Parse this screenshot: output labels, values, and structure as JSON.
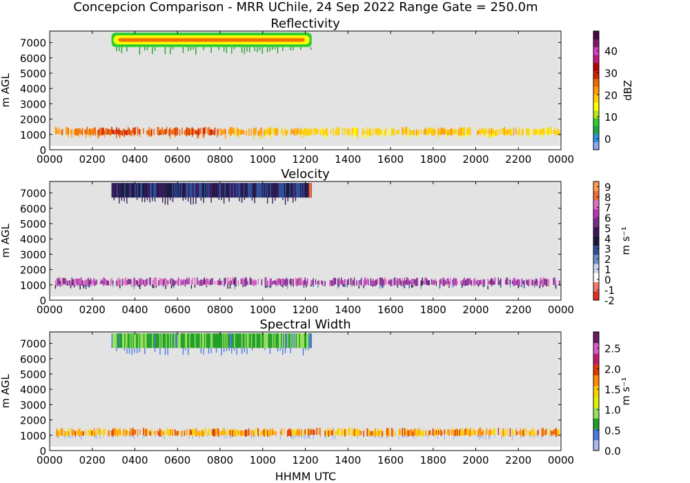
{
  "figure": {
    "suptitle": "Concepcion Comparison - MRR UChile, 24 Sep 2022 Range Gate = 250.0m",
    "xlabel": "HHMM UTC"
  },
  "chart_data": [
    {
      "type": "heatmap",
      "title": "Reflectivity",
      "ylabel": "m AGL",
      "x_ticks": [
        "0000",
        "0200",
        "0400",
        "0600",
        "0800",
        "1000",
        "1200",
        "1400",
        "1600",
        "1800",
        "2000",
        "2200",
        "0000"
      ],
      "y_ticks": [
        0,
        1000,
        2000,
        3000,
        4000,
        5000,
        6000,
        7000
      ],
      "xlim_hours": [
        0,
        24
      ],
      "ylim": [
        0,
        7750
      ],
      "background": "#e3e3e3",
      "colorbar": {
        "label": "dBZ",
        "range": [
          -5,
          49
        ],
        "ticks": [
          0,
          10,
          20,
          30,
          40
        ],
        "colors": [
          "#8ea8f0",
          "#2f8fe0",
          "#1aa84a",
          "#2fcc2f",
          "#b8e81a",
          "#ffff00",
          "#ffd000",
          "#ff9a00",
          "#f06a00",
          "#d42200",
          "#b80000",
          "#c2187a",
          "#d43ec8",
          "#7a1a6a",
          "#4a0a40"
        ]
      },
      "layers": [
        {
          "name": "upper layer",
          "time_hours": [
            2.9,
            12.3
          ],
          "height_m": [
            6500,
            7650
          ],
          "core_dbz": 26
        },
        {
          "name": "low band",
          "time_hours": [
            0.25,
            23.95
          ],
          "height_m": [
            700,
            1500
          ],
          "values_dbz": [
            24,
            27,
            27,
            27,
            22,
            20,
            18,
            18,
            19,
            20,
            19,
            18
          ]
        }
      ]
    },
    {
      "type": "heatmap",
      "title": "Velocity",
      "ylabel": "m s⁻¹",
      "ylabel_axis": "m AGL",
      "x_ticks": [
        "0000",
        "0200",
        "0400",
        "0600",
        "0800",
        "1000",
        "1200",
        "1400",
        "1600",
        "1800",
        "2000",
        "2200",
        "0000"
      ],
      "y_ticks": [
        0,
        1000,
        2000,
        3000,
        4000,
        5000,
        6000,
        7000
      ],
      "xlim_hours": [
        0,
        24
      ],
      "ylim": [
        0,
        7750
      ],
      "background": "#e3e3e3",
      "colorbar": {
        "label": "m s⁻¹",
        "range": [
          -2,
          9.5
        ],
        "ticks": [
          -2,
          -1,
          0,
          1,
          2,
          3,
          4,
          5,
          6,
          7,
          8,
          9
        ],
        "tick_labels": [
          "-2",
          "-1",
          "0",
          "1",
          "2",
          "3",
          "4",
          "5",
          "6",
          "7",
          "8",
          "9"
        ],
        "colors": [
          "#e03020",
          "#f07a6a",
          "#ffffff",
          "#cad6ee",
          "#6f8fc8",
          "#2f4f9a",
          "#1a1a40",
          "#3a1a5a",
          "#7a2a8a",
          "#b23ab6",
          "#e070c0",
          "#f06a3a",
          "#ff9a55"
        ]
      },
      "layers": [
        {
          "name": "upper layer",
          "time_hours": [
            2.9,
            12.3
          ],
          "height_m": [
            6500,
            7650
          ],
          "value_range": [
            2.5,
            5
          ]
        },
        {
          "name": "low band",
          "time_hours": [
            0.25,
            23.95
          ],
          "height_m": [
            700,
            1500
          ],
          "value_range": [
            5,
            7.5
          ]
        }
      ]
    },
    {
      "type": "heatmap",
      "title": "Spectral Width",
      "ylabel": "m s⁻¹",
      "ylabel_axis": "m AGL",
      "x_ticks": [
        "0000",
        "0200",
        "0400",
        "0600",
        "0800",
        "1000",
        "1200",
        "1400",
        "1600",
        "1800",
        "2000",
        "2200",
        "0000"
      ],
      "y_ticks": [
        0,
        1000,
        2000,
        3000,
        4000,
        5000,
        6000,
        7000
      ],
      "xlim_hours": [
        0,
        24
      ],
      "ylim": [
        0,
        7750
      ],
      "background": "#e3e3e3",
      "colorbar": {
        "label": "m s⁻¹",
        "range": [
          0,
          2.9
        ],
        "ticks": [
          0.0,
          0.5,
          1.0,
          1.5,
          2.0,
          2.5
        ],
        "tick_labels": [
          "0.0",
          "0.5",
          "1.0",
          "1.5",
          "2.0",
          "2.5"
        ],
        "colors": [
          "#aab8f0",
          "#4a7ae0",
          "#22a02a",
          "#9ae060",
          "#e0f000",
          "#ffd000",
          "#ff8a00",
          "#e03a00",
          "#c21a6a",
          "#d45ac8",
          "#6a1a60"
        ]
      },
      "layers": [
        {
          "name": "upper layer",
          "time_hours": [
            2.9,
            12.3
          ],
          "height_m": [
            6500,
            7650
          ],
          "value_range": [
            0.5,
            1.0
          ]
        },
        {
          "name": "low band",
          "time_hours": [
            0.25,
            23.95
          ],
          "height_m": [
            700,
            1500
          ],
          "value_range": [
            1.3,
            2.0
          ]
        }
      ]
    }
  ]
}
